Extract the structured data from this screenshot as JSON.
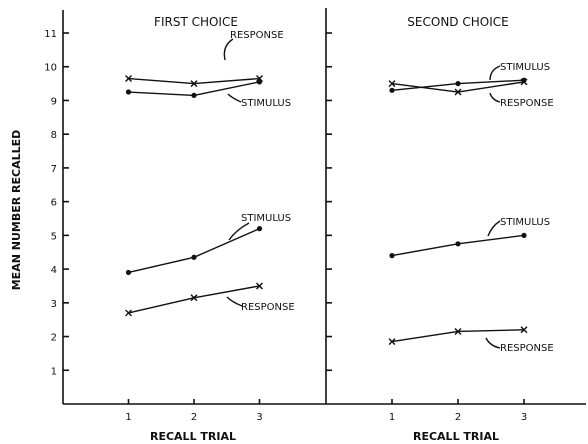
{
  "chart_data": {
    "type": "line",
    "ylabel": "MEAN NUMBER RECALLED",
    "ylim": [
      0,
      11
    ],
    "yticks": [
      1,
      2,
      3,
      4,
      5,
      6,
      7,
      8,
      9,
      10,
      11
    ],
    "xlim": [
      0,
      4
    ],
    "xticks": [
      1,
      2,
      3
    ],
    "grid": false,
    "panels": [
      {
        "title": "FIRST CHOICE",
        "xlabel": "RECALL TRIAL",
        "series": [
          {
            "name": "RESPONSE",
            "marker": "x",
            "x": [
              1,
              2,
              3
            ],
            "y": [
              9.65,
              9.5,
              9.65
            ]
          },
          {
            "name": "STIMULUS",
            "marker": "dot",
            "x": [
              1,
              2,
              3
            ],
            "y": [
              9.25,
              9.15,
              9.55
            ]
          },
          {
            "name": "STIMULUS",
            "marker": "dot",
            "x": [
              1,
              2,
              3
            ],
            "y": [
              3.9,
              4.35,
              5.2
            ]
          },
          {
            "name": "RESPONSE",
            "marker": "x",
            "x": [
              1,
              2,
              3
            ],
            "y": [
              2.7,
              3.15,
              3.5
            ]
          }
        ]
      },
      {
        "title": "SECOND CHOICE",
        "xlabel": "RECALL TRIAL",
        "series": [
          {
            "name": "STIMULUS",
            "marker": "dot",
            "x": [
              1,
              2,
              3
            ],
            "y": [
              9.3,
              9.5,
              9.6
            ]
          },
          {
            "name": "RESPONSE",
            "marker": "x",
            "x": [
              1,
              2,
              3
            ],
            "y": [
              9.5,
              9.25,
              9.55
            ]
          },
          {
            "name": "STIMULUS",
            "marker": "dot",
            "x": [
              1,
              2,
              3
            ],
            "y": [
              4.4,
              4.75,
              5.0
            ]
          },
          {
            "name": "RESPONSE",
            "marker": "x",
            "x": [
              1,
              2,
              3
            ],
            "y": [
              1.85,
              2.15,
              2.2
            ]
          }
        ]
      }
    ]
  }
}
